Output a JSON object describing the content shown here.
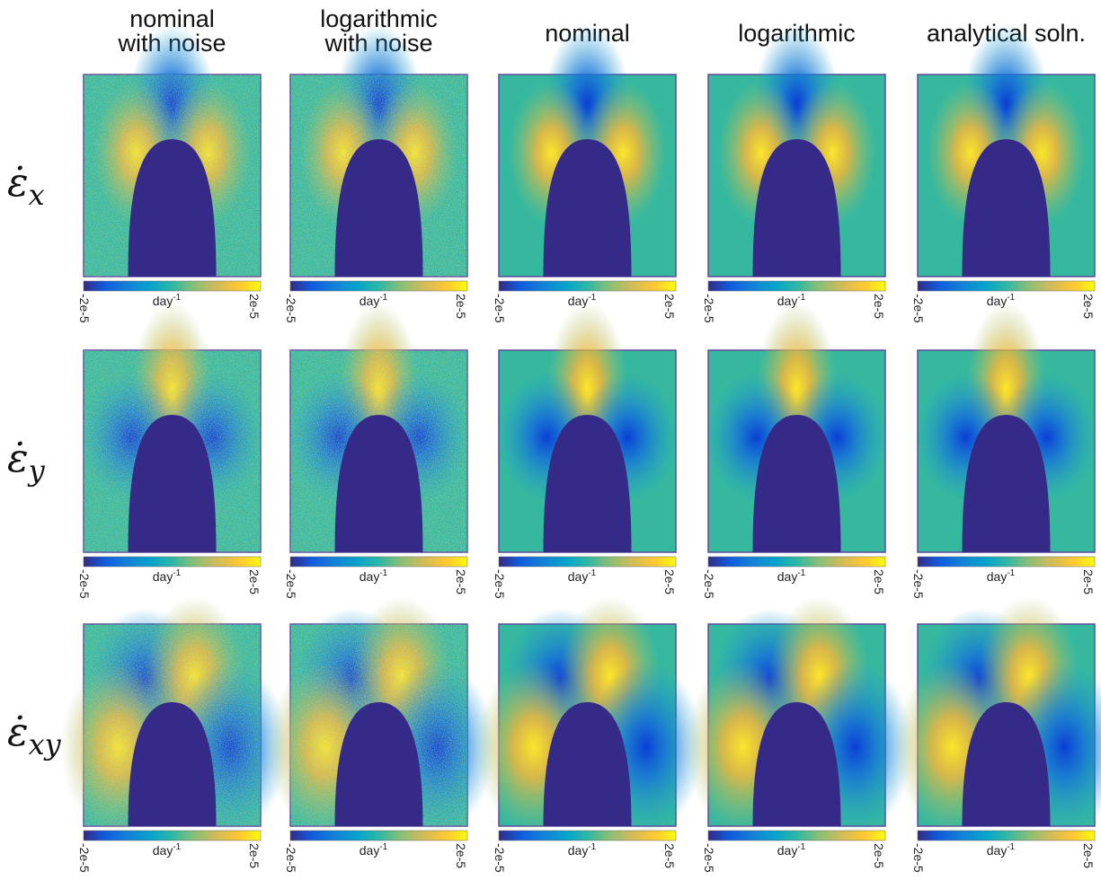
{
  "columns": [
    [
      "nominal",
      "with noise"
    ],
    [
      "logarithmic",
      "with noise"
    ],
    [
      "nominal"
    ],
    [
      "logarithmic"
    ],
    [
      "analytical soln."
    ]
  ],
  "rows": [
    {
      "symbol": "ε̇",
      "subscript": "x"
    },
    {
      "symbol": "ε̇",
      "subscript": "y"
    },
    {
      "symbol": "ε̇",
      "subscript": "xy"
    }
  ],
  "colorbar": {
    "min_label": "-2e-5",
    "max_label": "2e-5",
    "unit": "day",
    "unit_exponent": "-1"
  }
}
